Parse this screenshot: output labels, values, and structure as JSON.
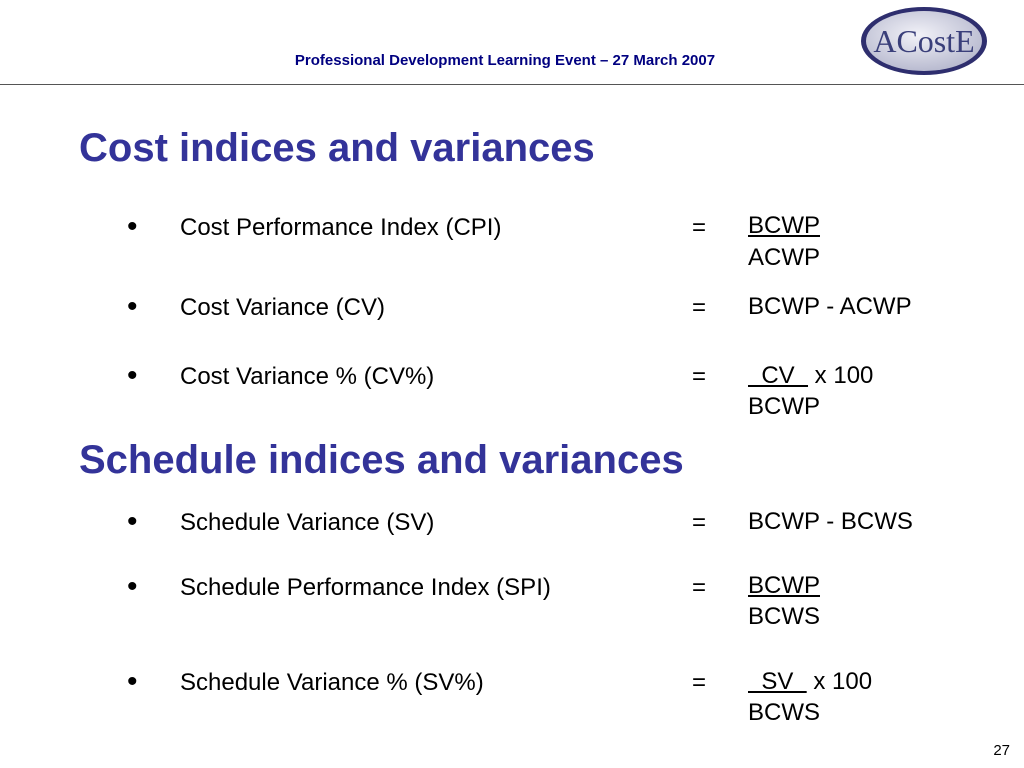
{
  "header": {
    "event_title": "Professional Development Learning Event – 27 March 2007",
    "logo_text": "ACostE"
  },
  "sections": [
    {
      "heading": "Cost indices and variances",
      "items": [
        {
          "label": "Cost Performance Index (CPI)",
          "equals": "=",
          "numerator": "BCWP",
          "denominator": "ACWP"
        },
        {
          "label": "Cost Variance (CV)",
          "equals": "=",
          "formula": "BCWP - ACWP"
        },
        {
          "label": "Cost Variance % (CV%)",
          "equals": "=",
          "numerator": "  CV  ",
          "multiplier": " x 100",
          "denominator": "BCWP"
        }
      ]
    },
    {
      "heading": "Schedule indices and variances",
      "items": [
        {
          "label": "Schedule Variance (SV)",
          "equals": "=",
          "formula": "BCWP - BCWS"
        },
        {
          "label": "Schedule Performance Index (SPI)",
          "equals": "=",
          "numerator": "BCWP",
          "denominator": "BCWS"
        },
        {
          "label": "Schedule Variance % (SV%)",
          "equals": "=",
          "numerator": "  SV  ",
          "multiplier": " x 100",
          "denominator": "BCWS"
        }
      ]
    }
  ],
  "bullet_glyph": "•",
  "page_number": "27",
  "colors": {
    "heading": "#333399",
    "header_text": "#000080",
    "logo_fill": "#dadbe8",
    "logo_ring": "#2e2e6e"
  }
}
